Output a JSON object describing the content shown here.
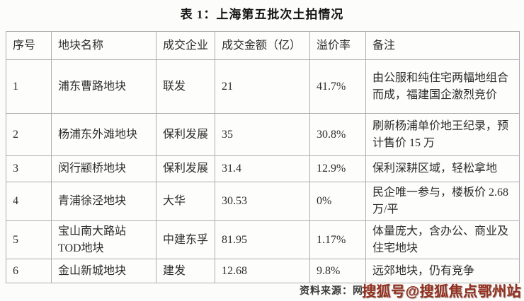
{
  "title": "表 1：上海第五批次土拍情况",
  "table": {
    "headers": {
      "no": "序号",
      "name": "地块名称",
      "company": "成交企业",
      "amount": "成交金额（亿）",
      "premium": "溢价率",
      "note": "备注"
    },
    "rows": [
      {
        "no": "1",
        "name": "浦东曹路地块",
        "company": "联发",
        "amount": "21",
        "premium": "41.7%",
        "note": "由公服和纯住宅两幅地组合而成，福建国企激烈竞价"
      },
      {
        "no": "2",
        "name": "杨浦东外滩地块",
        "company": "保利发展",
        "amount": "35",
        "premium": "30.8%",
        "note": "刷新杨浦单价地王纪录，预计售价 15 万"
      },
      {
        "no": "3",
        "name": "闵行颛桥地块",
        "company": "保利发展",
        "amount": "31.4",
        "premium": "12.9%",
        "note": "保利深耕区域，轻松拿地"
      },
      {
        "no": "4",
        "name": "青浦徐泾地块",
        "company": "大华",
        "amount": "30.53",
        "premium": "0%",
        "note": "民企唯一参与，楼板价 2.68 万/平"
      },
      {
        "no": "5",
        "name": "宝山南大路站 TOD地块",
        "company": "中建东孚",
        "amount": "81.95",
        "premium": "1.17%",
        "note": "体量庞大，含办公、商业及住宅地块"
      },
      {
        "no": "6",
        "name": "金山新城地块",
        "company": "建发",
        "amount": "12.68",
        "premium": "9.8%",
        "note": "远郊地块，仍有竞争"
      }
    ]
  },
  "footer": {
    "source_label": "资料来源：网",
    "watermark": "搜狐号@搜狐焦点鄂州站"
  },
  "colors": {
    "border": "#aeaeae",
    "text": "#2d2d2d",
    "watermark": "#93301f",
    "background": "#fcfcfb"
  }
}
